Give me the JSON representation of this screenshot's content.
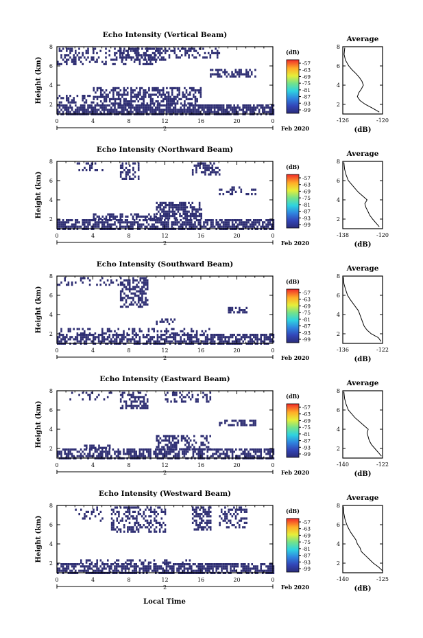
{
  "figure": {
    "date_label": "Feb 2020",
    "xlabel_bottom": "Local Time"
  },
  "chart_data": [
    {
      "type": "heatmap",
      "title": "Echo Intensity (Vertical Beam)",
      "ylabel": "Height (km)",
      "xlabel": "",
      "x_ticks": [
        "0",
        "4",
        "8",
        "12",
        "16",
        "20",
        "0"
      ],
      "y_ticks": [
        "2",
        "4",
        "6",
        "8"
      ],
      "xlim": [
        0,
        24
      ],
      "ylim": [
        1,
        8
      ],
      "date_label": "Feb 2020",
      "date_tick": "2",
      "colorbar": {
        "unit": "(dB)",
        "ticks": [
          "-57",
          "-63",
          "-69",
          "-75",
          "-81",
          "-87",
          "-93",
          "-99"
        ]
      },
      "patches": [
        {
          "x0": 0,
          "x1": 11,
          "y0": 6.2,
          "y1": 7.9,
          "density": 0.35
        },
        {
          "x0": 7,
          "x1": 12,
          "y0": 6.6,
          "y1": 7.9,
          "density": 0.55
        },
        {
          "x0": 12,
          "x1": 18,
          "y0": 6.8,
          "y1": 7.9,
          "density": 0.4
        },
        {
          "x0": 17,
          "x1": 22,
          "y0": 4.8,
          "y1": 5.7,
          "density": 0.5
        },
        {
          "x0": 0,
          "x1": 24,
          "y0": 1.0,
          "y1": 2.0,
          "density": 0.75
        },
        {
          "x0": 4,
          "x1": 16,
          "y0": 2.0,
          "y1": 3.8,
          "density": 0.55
        },
        {
          "x0": 0,
          "x1": 4,
          "y0": 2.2,
          "y1": 3.0,
          "density": 0.35
        }
      ],
      "average": {
        "title": "Average",
        "unit": "(dB)",
        "xlim": [
          -126,
          -120
        ],
        "x_ticks": [
          "-126",
          "-120"
        ],
        "ylim": [
          1,
          8
        ],
        "y_ticks": [
          "2",
          "4",
          "6",
          "8"
        ],
        "x": [
          -120.5,
          -121.5,
          -122.6,
          -123.4,
          -123.8,
          -123.6,
          -123.2,
          -122.9,
          -123.1,
          -123.5,
          -124.0,
          -124.6,
          -125.1,
          -125.6,
          -125.8,
          -125.7
        ],
        "y": [
          1.2,
          1.6,
          2.0,
          2.4,
          2.8,
          3.2,
          3.6,
          4.0,
          4.4,
          4.8,
          5.2,
          5.6,
          6.0,
          6.6,
          7.2,
          7.9
        ]
      }
    },
    {
      "type": "heatmap",
      "title": "Echo Intensity (Northward Beam)",
      "ylabel": "Height (km)",
      "xlabel": "",
      "x_ticks": [
        "0",
        "4",
        "8",
        "12",
        "16",
        "20",
        "0"
      ],
      "y_ticks": [
        "2",
        "4",
        "6",
        "8"
      ],
      "xlim": [
        0,
        24
      ],
      "ylim": [
        1,
        8
      ],
      "date_label": "Feb 2020",
      "date_tick": "2",
      "colorbar": {
        "unit": "(dB)",
        "ticks": [
          "-57",
          "-63",
          "-69",
          "-75",
          "-81",
          "-87",
          "-93",
          "-99"
        ]
      },
      "patches": [
        {
          "x0": 2,
          "x1": 5,
          "y0": 7.0,
          "y1": 7.9,
          "density": 0.35
        },
        {
          "x0": 7,
          "x1": 9,
          "y0": 6.2,
          "y1": 7.9,
          "density": 0.45
        },
        {
          "x0": 15,
          "x1": 18,
          "y0": 6.6,
          "y1": 7.9,
          "density": 0.55
        },
        {
          "x0": 18,
          "x1": 22,
          "y0": 4.6,
          "y1": 5.4,
          "density": 0.35
        },
        {
          "x0": 0,
          "x1": 24,
          "y0": 1.0,
          "y1": 2.0,
          "density": 0.7
        },
        {
          "x0": 11,
          "x1": 16,
          "y0": 2.0,
          "y1": 3.8,
          "density": 0.7
        },
        {
          "x0": 4,
          "x1": 11,
          "y0": 2.0,
          "y1": 2.6,
          "density": 0.5
        }
      ],
      "average": {
        "title": "Average",
        "unit": "(dB)",
        "xlim": [
          -138,
          -120
        ],
        "x_ticks": [
          "-138",
          "-120"
        ],
        "ylim": [
          1,
          8
        ],
        "y_ticks": [
          "2",
          "4",
          "6",
          "8"
        ],
        "x": [
          -121.5,
          -123.0,
          -124.5,
          -125.8,
          -126.6,
          -127.5,
          -128.0,
          -127.0,
          -129.0,
          -131.0,
          -132.5,
          -134.0,
          -135.5,
          -136.5,
          -137.2,
          -137.5
        ],
        "y": [
          1.2,
          1.6,
          2.0,
          2.4,
          2.8,
          3.2,
          3.6,
          4.0,
          4.4,
          4.8,
          5.2,
          5.6,
          6.0,
          6.6,
          7.2,
          7.9
        ]
      }
    },
    {
      "type": "heatmap",
      "title": "Echo Intensity (Southward Beam)",
      "ylabel": "Height (km)",
      "xlabel": "",
      "x_ticks": [
        "0",
        "4",
        "8",
        "12",
        "16",
        "20",
        "0"
      ],
      "y_ticks": [
        "2",
        "4",
        "6",
        "8"
      ],
      "xlim": [
        0,
        24
      ],
      "ylim": [
        1,
        8
      ],
      "date_label": "Feb 2020",
      "date_tick": "2",
      "colorbar": {
        "unit": "(dB)",
        "ticks": [
          "-57",
          "-63",
          "-69",
          "-75",
          "-81",
          "-87",
          "-93",
          "-99"
        ]
      },
      "patches": [
        {
          "x0": 0,
          "x1": 7,
          "y0": 7.2,
          "y1": 7.9,
          "density": 0.25
        },
        {
          "x0": 7,
          "x1": 10,
          "y0": 4.8,
          "y1": 7.9,
          "density": 0.55
        },
        {
          "x0": 19,
          "x1": 21,
          "y0": 4.2,
          "y1": 4.8,
          "density": 0.6
        },
        {
          "x0": 11,
          "x1": 13,
          "y0": 3.0,
          "y1": 3.6,
          "density": 0.45
        },
        {
          "x0": 0,
          "x1": 24,
          "y0": 1.0,
          "y1": 2.0,
          "density": 0.65
        },
        {
          "x0": 0,
          "x1": 17,
          "y0": 2.0,
          "y1": 2.6,
          "density": 0.3
        }
      ],
      "average": {
        "title": "Average",
        "unit": "(dB)",
        "xlim": [
          -136,
          -122
        ],
        "x_ticks": [
          "-136",
          "-122"
        ],
        "ylim": [
          1,
          8
        ],
        "y_ticks": [
          "2",
          "4",
          "6",
          "8"
        ],
        "x": [
          -122.5,
          -123.5,
          -126.0,
          -127.5,
          -128.5,
          -129.0,
          -129.5,
          -130.0,
          -130.5,
          -131.5,
          -132.5,
          -133.5,
          -134.3,
          -135.0,
          -135.6,
          -135.8
        ],
        "y": [
          1.2,
          1.6,
          2.0,
          2.4,
          2.8,
          3.2,
          3.6,
          4.0,
          4.4,
          4.8,
          5.2,
          5.6,
          6.0,
          6.6,
          7.2,
          7.9
        ]
      }
    },
    {
      "type": "heatmap",
      "title": "Echo Intensity (Eastward Beam)",
      "ylabel": "Height (km)",
      "xlabel": "",
      "x_ticks": [
        "0",
        "4",
        "8",
        "12",
        "16",
        "20",
        "0"
      ],
      "y_ticks": [
        "2",
        "4",
        "6",
        "8"
      ],
      "xlim": [
        0,
        24
      ],
      "ylim": [
        1,
        8
      ],
      "date_label": "Feb 2020",
      "date_tick": "2",
      "colorbar": {
        "unit": "(dB)",
        "ticks": [
          "-57",
          "-63",
          "-69",
          "-75",
          "-81",
          "-87",
          "-93",
          "-99"
        ]
      },
      "patches": [
        {
          "x0": 1,
          "x1": 6,
          "y0": 7.0,
          "y1": 7.9,
          "density": 0.25
        },
        {
          "x0": 7,
          "x1": 10,
          "y0": 6.2,
          "y1": 7.9,
          "density": 0.5
        },
        {
          "x0": 12,
          "x1": 17,
          "y0": 6.8,
          "y1": 7.9,
          "density": 0.35
        },
        {
          "x0": 18,
          "x1": 22,
          "y0": 4.4,
          "y1": 5.0,
          "density": 0.5
        },
        {
          "x0": 0,
          "x1": 24,
          "y0": 1.0,
          "y1": 2.0,
          "density": 0.65
        },
        {
          "x0": 11,
          "x1": 17,
          "y0": 2.0,
          "y1": 3.4,
          "density": 0.55
        },
        {
          "x0": 3,
          "x1": 6,
          "y0": 2.0,
          "y1": 2.4,
          "density": 0.5
        }
      ],
      "average": {
        "title": "Average",
        "unit": "(dB)",
        "xlim": [
          -140,
          -122
        ],
        "x_ticks": [
          "-140",
          "-122"
        ],
        "ylim": [
          1,
          8
        ],
        "y_ticks": [
          "2",
          "4",
          "6",
          "8"
        ],
        "x": [
          -122.5,
          -124.0,
          -125.5,
          -127.0,
          -128.0,
          -128.5,
          -129.0,
          -128.5,
          -130.5,
          -132.5,
          -134.5,
          -136.0,
          -137.5,
          -138.5,
          -139.2,
          -139.5
        ],
        "y": [
          1.2,
          1.6,
          2.0,
          2.4,
          2.8,
          3.2,
          3.6,
          4.0,
          4.4,
          4.8,
          5.2,
          5.6,
          6.0,
          6.6,
          7.2,
          7.9
        ]
      }
    },
    {
      "type": "heatmap",
      "title": "Echo Intensity (Westward Beam)",
      "ylabel": "Height (km)",
      "xlabel": "Local Time",
      "x_ticks": [
        "0",
        "4",
        "8",
        "12",
        "16",
        "20",
        "0"
      ],
      "y_ticks": [
        "2",
        "4",
        "6",
        "8"
      ],
      "xlim": [
        0,
        24
      ],
      "ylim": [
        1,
        8
      ],
      "date_label": "Feb 2020",
      "date_tick": "2",
      "colorbar": {
        "unit": "(dB)",
        "ticks": [
          "-57",
          "-63",
          "-69",
          "-75",
          "-81",
          "-87",
          "-93",
          "-99"
        ]
      },
      "patches": [
        {
          "x0": 2,
          "x1": 5,
          "y0": 6.4,
          "y1": 7.9,
          "density": 0.3
        },
        {
          "x0": 6,
          "x1": 12,
          "y0": 5.2,
          "y1": 7.9,
          "density": 0.4
        },
        {
          "x0": 15,
          "x1": 17,
          "y0": 5.5,
          "y1": 7.9,
          "density": 0.55
        },
        {
          "x0": 18,
          "x1": 21,
          "y0": 5.8,
          "y1": 7.9,
          "density": 0.35
        },
        {
          "x0": 0,
          "x1": 24,
          "y0": 1.0,
          "y1": 2.0,
          "density": 0.7
        },
        {
          "x0": 2,
          "x1": 15,
          "y0": 2.0,
          "y1": 2.4,
          "density": 0.3
        }
      ],
      "average": {
        "title": "Average",
        "unit": "(dB)",
        "xlim": [
          -140,
          -125
        ],
        "x_ticks": [
          "-140",
          "-125"
        ],
        "ylim": [
          1,
          8
        ],
        "y_ticks": [
          "2",
          "4",
          "6",
          "8"
        ],
        "x": [
          -125.0,
          -126.5,
          -128.5,
          -130.0,
          -131.5,
          -133.0,
          -133.5,
          -134.5,
          -135.0,
          -136.0,
          -137.0,
          -137.8,
          -138.5,
          -139.2,
          -139.6,
          -139.8
        ],
        "y": [
          1.2,
          1.6,
          2.0,
          2.4,
          2.8,
          3.2,
          3.6,
          4.0,
          4.4,
          4.8,
          5.2,
          5.6,
          6.0,
          6.6,
          7.2,
          7.9
        ]
      }
    }
  ]
}
